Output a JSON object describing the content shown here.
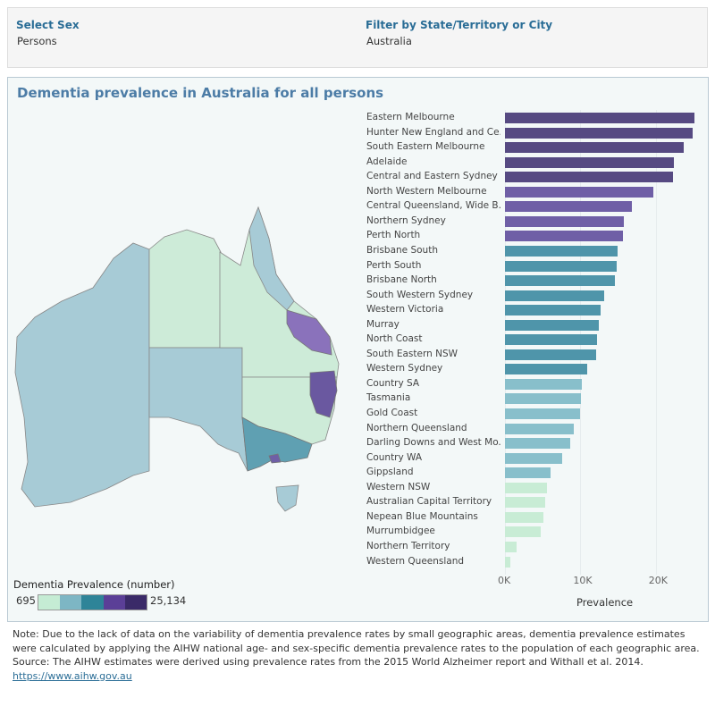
{
  "filters": {
    "sex_label": "Select Sex",
    "sex_value": "Persons",
    "region_label": "Filter by State/Territory or City",
    "region_value": "Australia"
  },
  "title": "Dementia prevalence in Australia for all persons",
  "legend": {
    "title": "Dementia Prevalence (number)",
    "min": "695",
    "max": "25,134",
    "colors": [
      "#c5ecd4",
      "#7db6c4",
      "#2e8498",
      "#5b3f97",
      "#3a2a68"
    ]
  },
  "chart_data": {
    "type": "bar",
    "orientation": "horizontal",
    "xlabel": "Prevalence",
    "xlim": [
      0,
      26000
    ],
    "ticks": [
      "0K",
      "10K",
      "20K"
    ],
    "tick_values": [
      0,
      10000,
      20000
    ],
    "categories": [
      "Eastern Melbourne",
      "Hunter New England and Ce..",
      "South Eastern Melbourne",
      "Adelaide",
      "Central and Eastern Sydney",
      "North Western Melbourne",
      "Central Queensland, Wide B..",
      "Northern Sydney",
      "Perth North",
      "Brisbane South",
      "Perth South",
      "Brisbane North",
      "South Western Sydney",
      "Western Victoria",
      "Murray",
      "North Coast",
      "South Eastern NSW",
      "Western Sydney",
      "Country SA",
      "Tasmania",
      "Gold Coast",
      "Northern Queensland",
      "Darling Downs and West Mo..",
      "Country WA",
      "Gippsland",
      "Western NSW",
      "Australian Capital Territory",
      "Nepean Blue Mountains",
      "Murrumbidgee",
      "Northern Territory",
      "Western Queensland"
    ],
    "values": [
      25134,
      24900,
      23700,
      22400,
      22300,
      19700,
      16800,
      15800,
      15600,
      14900,
      14800,
      14600,
      13200,
      12700,
      12400,
      12200,
      12100,
      10900,
      10200,
      10100,
      10000,
      9100,
      8600,
      7600,
      6000,
      5600,
      5300,
      5100,
      4700,
      1500,
      695
    ]
  },
  "bar_colors": {
    "band1": "#564a82",
    "band2": "#6f5fa6",
    "band3": "#4f95aa",
    "band4": "#88bfcb",
    "band5": "#c8ecd5"
  },
  "notes": {
    "note": "Note:  Due to the lack of data on the variability of dementia prevalence rates by small geographic areas, dementia prevalence estimates were calculated by applying the AIHW national age- and sex-specific dementia prevalence rates to the population of each geographic area.",
    "source": "Source: The AIHW estimates were derived using prevalence rates from the 2015 World Alzheimer report and Withall et al. 2014.",
    "link": "https://www.aihw.gov.au"
  }
}
